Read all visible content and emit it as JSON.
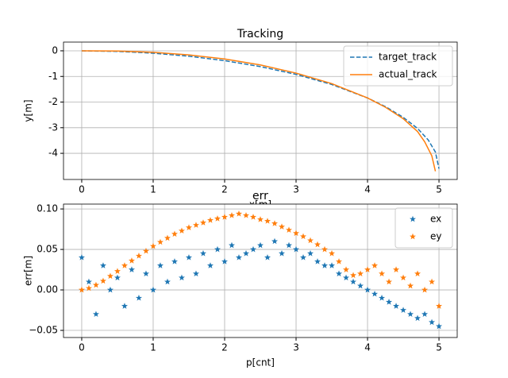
{
  "chart_data": [
    {
      "type": "line",
      "title": "Tracking",
      "xlabel": "x[m]",
      "ylabel": "y[m]",
      "xlim": [
        -0.255,
        5.255
      ],
      "ylim": [
        -5.02,
        0.34
      ],
      "xticks": [
        0,
        1,
        2,
        3,
        4,
        5
      ],
      "yticks": [
        0,
        -1,
        -2,
        -3,
        -4
      ],
      "grid": true,
      "legend": "upper right",
      "series": [
        {
          "name": "target_track",
          "color": "#1f77b4",
          "linestyle": "dashed",
          "x": [
            0,
            0.5,
            1,
            1.5,
            2,
            2.5,
            3,
            3.5,
            4,
            4.25,
            4.5,
            4.7,
            4.85,
            4.95,
            5.0
          ],
          "values": [
            0,
            -0.023,
            -0.093,
            -0.212,
            -0.384,
            -0.616,
            -0.92,
            -1.315,
            -1.84,
            -2.177,
            -2.595,
            -3.03,
            -3.48,
            -3.95,
            -4.6
          ]
        },
        {
          "name": "actual_track",
          "color": "#ff7f0e",
          "linestyle": "solid",
          "x": [
            0,
            0.5,
            1,
            1.5,
            2,
            2.5,
            3,
            3.5,
            4,
            4.25,
            4.5,
            4.7,
            4.8,
            4.9,
            4.95
          ],
          "values": [
            0,
            -0.01,
            -0.06,
            -0.16,
            -0.32,
            -0.55,
            -0.87,
            -1.28,
            -1.84,
            -2.2,
            -2.65,
            -3.15,
            -3.55,
            -4.1,
            -4.7
          ]
        }
      ]
    },
    {
      "type": "scatter",
      "title": "err",
      "xlabel": "p[cnt]",
      "ylabel": "err[m]",
      "xlim": [
        -0.255,
        5.255
      ],
      "ylim": [
        -0.0588,
        0.106
      ],
      "xticks": [
        0,
        1,
        2,
        3,
        4,
        5
      ],
      "yticks": [
        {
          "value": -0.05,
          "label": "−0.05"
        },
        {
          "value": 0,
          "label": "0.00"
        },
        {
          "value": 0.05,
          "label": "0.05"
        },
        {
          "value": 0.1,
          "label": "0.10"
        }
      ],
      "grid": true,
      "legend": "upper right",
      "marker": "star",
      "x": [
        0,
        0.1,
        0.2,
        0.3,
        0.4,
        0.5,
        0.6,
        0.7,
        0.8,
        0.9,
        1.0,
        1.1,
        1.2,
        1.3,
        1.4,
        1.5,
        1.6,
        1.7,
        1.8,
        1.9,
        2.0,
        2.1,
        2.2,
        2.3,
        2.4,
        2.5,
        2.6,
        2.7,
        2.8,
        2.9,
        3.0,
        3.1,
        3.2,
        3.3,
        3.4,
        3.5,
        3.6,
        3.7,
        3.8,
        3.9,
        4.0,
        4.1,
        4.2,
        4.3,
        4.4,
        4.5,
        4.6,
        4.7,
        4.8,
        4.9,
        5.0
      ],
      "series": [
        {
          "name": "ex",
          "color": "#1f77b4",
          "values": [
            0.04,
            0.01,
            -0.03,
            0.03,
            0.0,
            0.015,
            -0.02,
            0.025,
            -0.01,
            0.02,
            0.0,
            0.03,
            0.01,
            0.035,
            0.015,
            0.04,
            0.02,
            0.045,
            0.03,
            0.05,
            0.035,
            0.055,
            0.04,
            0.045,
            0.05,
            0.055,
            0.04,
            0.06,
            0.045,
            0.055,
            0.05,
            0.04,
            0.045,
            0.035,
            0.03,
            0.03,
            0.02,
            0.015,
            0.01,
            0.005,
            0.0,
            -0.005,
            -0.01,
            -0.015,
            -0.02,
            -0.025,
            -0.03,
            -0.035,
            -0.03,
            -0.04,
            -0.045
          ]
        },
        {
          "name": "ey",
          "color": "#ff7f0e",
          "values": [
            0,
            0.002,
            0.006,
            0.011,
            0.017,
            0.023,
            0.03,
            0.036,
            0.042,
            0.048,
            0.054,
            0.059,
            0.064,
            0.069,
            0.073,
            0.077,
            0.08,
            0.083,
            0.086,
            0.088,
            0.09,
            0.092,
            0.094,
            0.092,
            0.09,
            0.087,
            0.085,
            0.082,
            0.078,
            0.074,
            0.07,
            0.066,
            0.061,
            0.056,
            0.05,
            0.045,
            0.035,
            0.025,
            0.018,
            0.02,
            0.025,
            0.03,
            0.02,
            0.01,
            0.025,
            0.015,
            0.005,
            0.02,
            0.0,
            0.01,
            -0.02
          ]
        }
      ]
    }
  ]
}
